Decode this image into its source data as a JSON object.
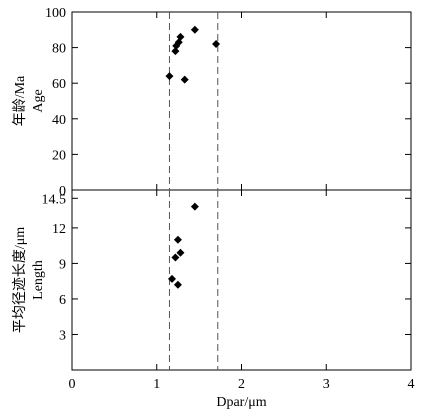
{
  "chart_data": [
    {
      "type": "scatter",
      "panel": "top",
      "ylabel_cn": "年龄/Ma",
      "ylabel_en": "Age",
      "xlim": [
        0,
        4
      ],
      "ylim": [
        0,
        100
      ],
      "yticks": [
        0,
        20,
        40,
        60,
        80,
        100
      ],
      "dashed_lines_x": [
        1.15,
        1.72
      ],
      "points": [
        {
          "x": 1.15,
          "y": 64
        },
        {
          "x": 1.22,
          "y": 78
        },
        {
          "x": 1.23,
          "y": 81
        },
        {
          "x": 1.26,
          "y": 83
        },
        {
          "x": 1.28,
          "y": 86
        },
        {
          "x": 1.33,
          "y": 62
        },
        {
          "x": 1.45,
          "y": 90
        },
        {
          "x": 1.7,
          "y": 82
        }
      ],
      "marker": "diamond",
      "color": "#000000"
    },
    {
      "type": "scatter",
      "panel": "bottom",
      "ylabel_cn": "平均径迹长度/μm",
      "ylabel_en": "Length",
      "xlabel": "Dpar/μm",
      "xlim": [
        0,
        4
      ],
      "ylim": [
        0,
        15.2
      ],
      "xticks": [
        0,
        1,
        2,
        3,
        4
      ],
      "yticks": [
        3,
        6,
        9,
        12,
        14.5
      ],
      "ytick_labels": [
        "3",
        "6",
        "9",
        "12",
        "14.5"
      ],
      "dashed_lines_x": [
        1.15,
        1.72
      ],
      "points": [
        {
          "x": 1.45,
          "y": 13.8
        },
        {
          "x": 1.25,
          "y": 11.0
        },
        {
          "x": 1.28,
          "y": 9.9
        },
        {
          "x": 1.22,
          "y": 9.5
        },
        {
          "x": 1.18,
          "y": 7.7
        },
        {
          "x": 1.25,
          "y": 7.2
        }
      ],
      "marker": "diamond",
      "color": "#000000"
    }
  ]
}
